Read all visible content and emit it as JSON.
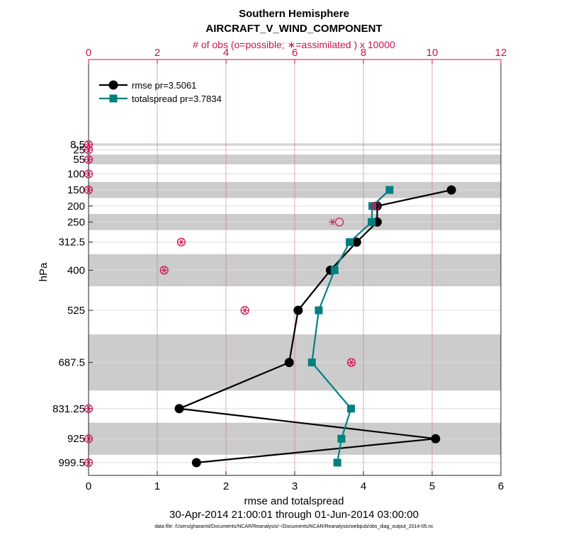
{
  "chart_data": {
    "type": "line",
    "title": "Southern Hemisphere",
    "subtitle": "AIRCRAFT_V_WIND_COMPONENT",
    "top_axis_label": "# of obs (o=possible; ∗=assimilated ) x 10000",
    "xlabel": "rmse and totalspread",
    "ylabel": "hPa",
    "date_range": "30-Apr-2014 21:00:01 through 01-Jun-2014 03:00:00",
    "file_note": "data file: /Users/gharamti/Documents/NCAR/Reanalysis/~/Documents/NCAR/Reanalysis/webpub/obs_diag_output_2014-05.nc",
    "xlim": [
      0,
      6
    ],
    "x_ticks": [
      "0",
      "1",
      "2",
      "3",
      "4",
      "5",
      "6"
    ],
    "top_xlim": [
      0,
      12
    ],
    "top_ticks": [
      "0",
      "2",
      "4",
      "6",
      "8",
      "10",
      "12"
    ],
    "y_levels": [
      8.5,
      25,
      55,
      100,
      150,
      200,
      250,
      312.5,
      400,
      525,
      687.5,
      831.25,
      925,
      999.5
    ],
    "y_tick_labels": [
      "8.5",
      "25",
      "55",
      "100",
      "150",
      "200",
      "250",
      "312.5",
      "400",
      "525",
      "687.5",
      "831.25",
      "925",
      "999.5"
    ],
    "legend": {
      "location": "top-left",
      "rmse": "rmse pr=3.5061",
      "spread": "totalspread pr=3.7834"
    },
    "series": [
      {
        "name": "rmse pr=3.5061",
        "color": "#000000",
        "marker": "circle",
        "points": [
          {
            "p": 150,
            "v": 5.28
          },
          {
            "p": 200,
            "v": 4.2
          },
          {
            "p": 250,
            "v": 4.2
          },
          {
            "p": 312.5,
            "v": 3.9
          },
          {
            "p": 400,
            "v": 3.52
          },
          {
            "p": 525,
            "v": 3.05
          },
          {
            "p": 687.5,
            "v": 2.92
          },
          {
            "p": 831.25,
            "v": 1.32
          },
          {
            "p": 925,
            "v": 5.05
          },
          {
            "p": 999.5,
            "v": 1.57
          }
        ]
      },
      {
        "name": "totalspread pr=3.7834",
        "color": "#008080",
        "marker": "square",
        "points": [
          {
            "p": 150,
            "v": 4.38
          },
          {
            "p": 200,
            "v": 4.13
          },
          {
            "p": 250,
            "v": 4.12
          },
          {
            "p": 312.5,
            "v": 3.8
          },
          {
            "p": 400,
            "v": 3.58
          },
          {
            "p": 525,
            "v": 3.35
          },
          {
            "p": 687.5,
            "v": 3.25
          },
          {
            "p": 831.25,
            "v": 3.82
          },
          {
            "p": 925,
            "v": 3.68
          },
          {
            "p": 999.5,
            "v": 3.62
          }
        ]
      }
    ],
    "obs_counts_x10000": [
      {
        "p": 8.5,
        "possible": 0,
        "assimilated": 0
      },
      {
        "p": 25,
        "possible": 0,
        "assimilated": 0
      },
      {
        "p": 55,
        "possible": 0,
        "assimilated": 0
      },
      {
        "p": 100,
        "possible": 0,
        "assimilated": 0
      },
      {
        "p": 150,
        "possible": 0,
        "assimilated": 0
      },
      {
        "p": 200,
        "possible": 8.35,
        "assimilated": 8.3
      },
      {
        "p": 250,
        "possible": 7.3,
        "assimilated": 7.1
      },
      {
        "p": 312.5,
        "possible": 2.7,
        "assimilated": 2.7
      },
      {
        "p": 400,
        "possible": 2.2,
        "assimilated": 2.2
      },
      {
        "p": 525,
        "possible": 4.55,
        "assimilated": 4.55
      },
      {
        "p": 687.5,
        "possible": 7.65,
        "assimilated": 7.65
      },
      {
        "p": 831.25,
        "possible": 0,
        "assimilated": 0
      },
      {
        "p": 925,
        "possible": 0,
        "assimilated": 0
      },
      {
        "p": 999.5,
        "possible": 0,
        "assimilated": 0
      }
    ],
    "shaded_layers_hpa": [
      [
        5,
        12
      ],
      [
        40,
        70
      ],
      [
        125,
        175
      ],
      [
        225,
        275
      ],
      [
        350,
        450
      ],
      [
        600,
        775
      ],
      [
        875,
        975
      ]
    ],
    "colors": {
      "obs": "#cc1155",
      "shade": "#cccccc",
      "grid": "#dddddd",
      "top_grid": "#cc6f99"
    }
  }
}
